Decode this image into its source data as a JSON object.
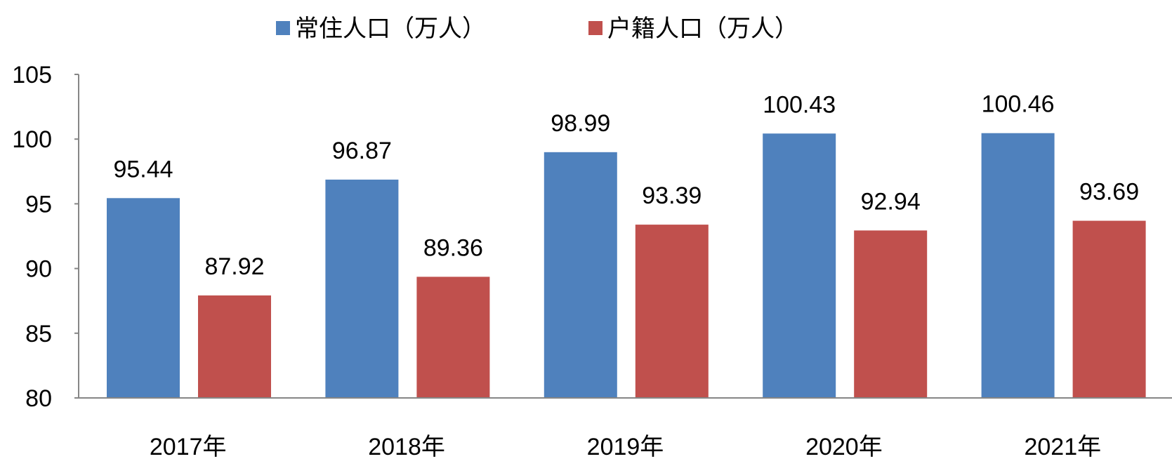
{
  "chart_data": {
    "type": "bar",
    "categories": [
      "2017年",
      "2018年",
      "2019年",
      "2020年",
      "2021年"
    ],
    "series": [
      {
        "name": "常住人口（万人）",
        "values": [
          95.44,
          96.87,
          98.99,
          100.43,
          100.46
        ],
        "color": "#4F81BD"
      },
      {
        "name": "户籍人口（万人）",
        "values": [
          87.92,
          89.36,
          93.39,
          92.94,
          93.69
        ],
        "color": "#C0504D"
      }
    ],
    "ylim": [
      80,
      105
    ],
    "yticks": [
      "80",
      "85",
      "90",
      "95",
      "100",
      "105"
    ],
    "data_labels": [
      [
        "95.44",
        "96.87",
        "98.99",
        "100.43",
        "100.46"
      ],
      [
        "87.92",
        "89.36",
        "93.39",
        "92.94",
        "93.69"
      ]
    ],
    "legend_position": "top-center",
    "grid": false
  }
}
